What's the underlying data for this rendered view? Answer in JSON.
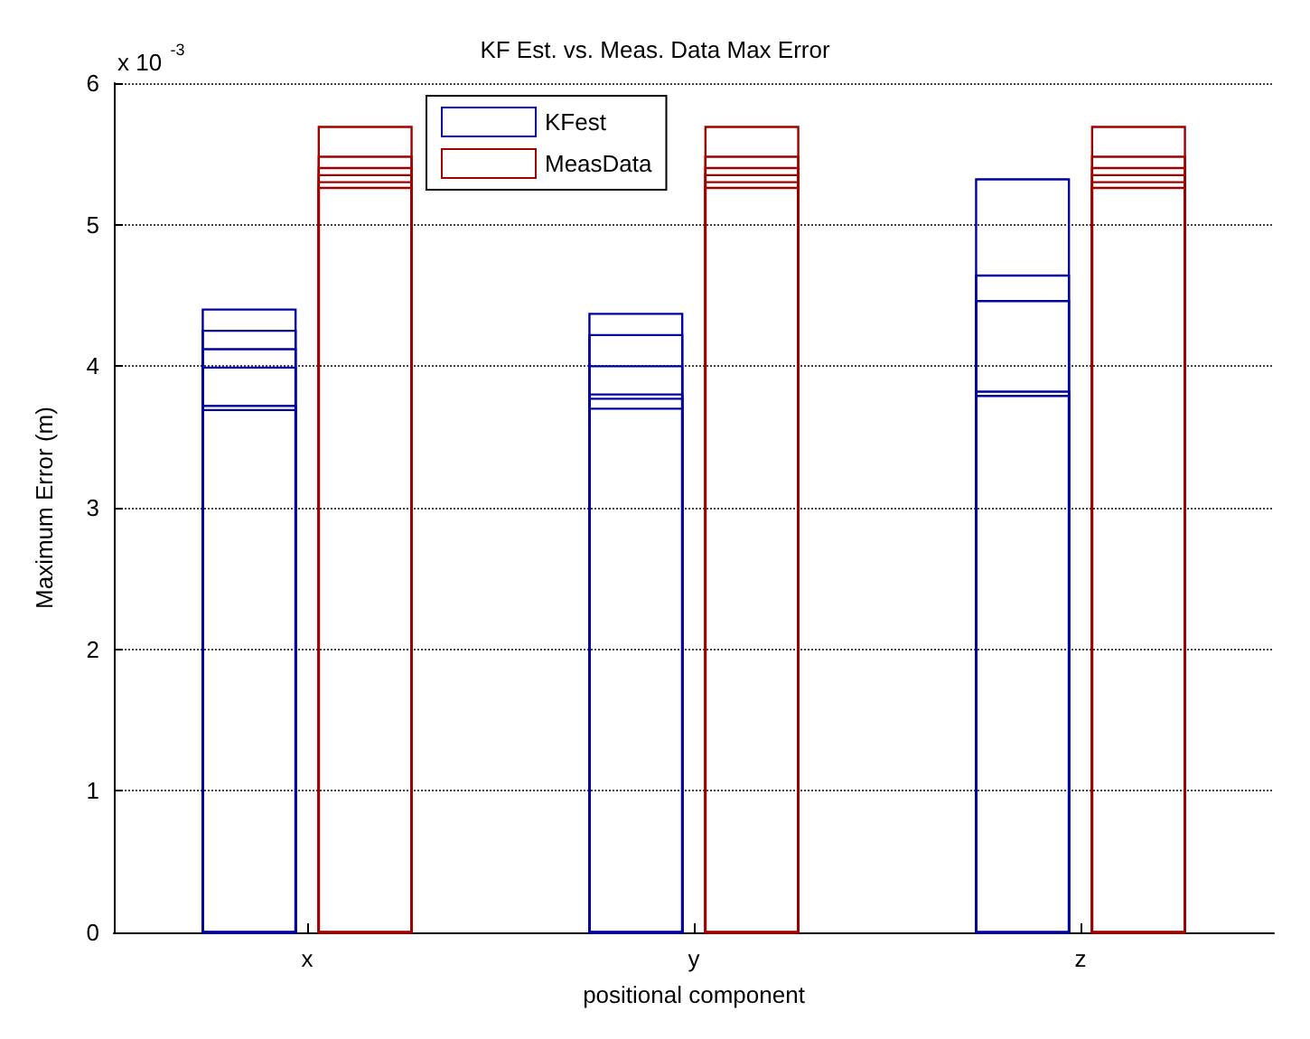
{
  "chart_data": {
    "type": "bar",
    "title": "KF Est. vs. Meas. Data Max Error",
    "xlabel": "positional component",
    "ylabel": "Maximum Error (m)",
    "annotations": [
      "x 10$^{-3}$"
    ],
    "categories": [
      "x",
      "y",
      "z"
    ],
    "series": [
      {
        "name": "KFest",
        "color": "#0000a0",
        "values": [
          4.4,
          4.37,
          5.32
        ]
      },
      {
        "color": "#0000a0",
        "values": [
          4.25,
          4.22,
          4.64
        ]
      },
      {
        "color": "#0000a0",
        "values": [
          4.12,
          4.0,
          4.46
        ]
      },
      {
        "color": "#0000a0",
        "values": [
          3.99,
          3.8,
          3.82
        ]
      },
      {
        "color": "#0000a0",
        "values": [
          3.72,
          3.77,
          3.79
        ]
      },
      {
        "color": "#0000a0",
        "values": [
          3.69,
          3.7,
          null
        ]
      },
      {
        "name": "MeasData",
        "color": "#a00000",
        "values": [
          5.69,
          5.69,
          5.69
        ]
      },
      {
        "color": "#a00000",
        "values": [
          5.48,
          5.48,
          5.48
        ]
      },
      {
        "color": "#a00000",
        "values": [
          5.4,
          5.4,
          5.4
        ]
      },
      {
        "color": "#a00000",
        "values": [
          5.35,
          5.35,
          5.35
        ]
      },
      {
        "color": "#a00000",
        "values": [
          5.3,
          5.3,
          5.3
        ]
      },
      {
        "color": "#a00000",
        "values": [
          5.26,
          5.26,
          5.26
        ]
      }
    ],
    "ylim": [
      0,
      6
    ],
    "yticks": [
      0,
      1,
      2,
      3,
      4,
      5,
      6
    ],
    "grid": "y",
    "legend": "top left"
  }
}
